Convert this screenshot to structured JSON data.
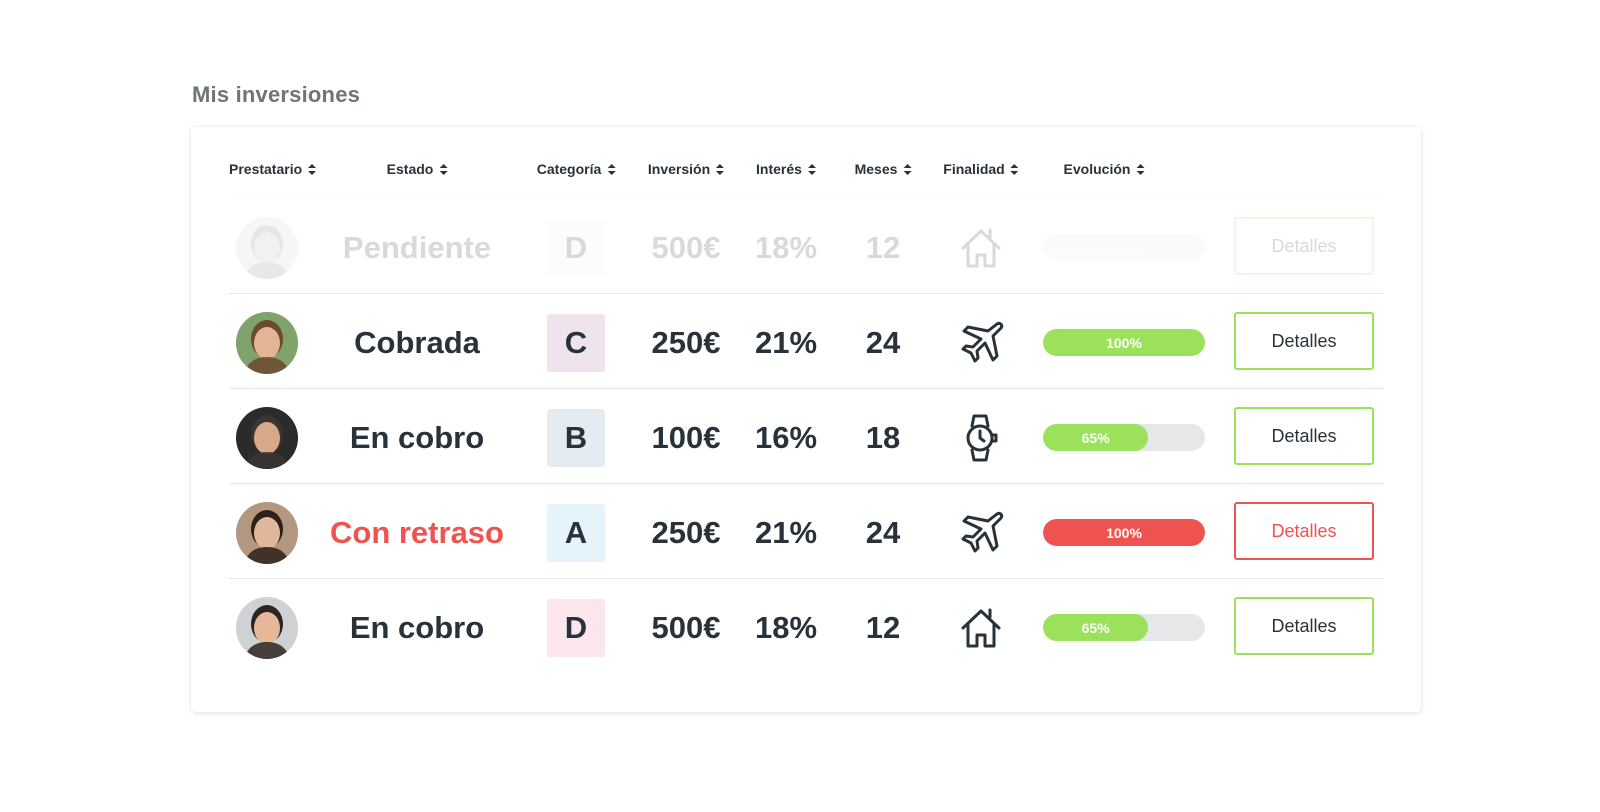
{
  "page": {
    "title": "Mis inversiones"
  },
  "table": {
    "headers": [
      "Prestatario",
      "Estado",
      "Categoría",
      "Inversión",
      "Interés",
      "Meses",
      "Finalidad",
      "Evolución"
    ],
    "rows": [
      {
        "status": "Pendiente",
        "status_kind": "pending",
        "category": "D",
        "category_color": "#f1f3f4",
        "investment": "500€",
        "interest": "18%",
        "months": "12",
        "purpose_icon": "house-icon",
        "progress": 0,
        "progress_label": "",
        "progress_color": "#e5e7e9",
        "button": "Detalles",
        "avatar_skin": "#b8b8b8",
        "avatar_hair": "#7a7a7a",
        "avatar_bg": "#d0d0d0"
      },
      {
        "status": "Cobrada",
        "status_kind": "paid",
        "category": "C",
        "category_color": "#efe3ee",
        "investment": "250€",
        "interest": "21%",
        "months": "24",
        "purpose_icon": "airplane-icon",
        "progress": 100,
        "progress_label": "100%",
        "progress_color": "#9be25a",
        "button": "Detalles",
        "avatar_skin": "#e2b594",
        "avatar_hair": "#6b4a2e",
        "avatar_bg": "#7fa36a"
      },
      {
        "status": "En cobro",
        "status_kind": "collecting",
        "category": "B",
        "category_color": "#e4ecf2",
        "investment": "100€",
        "interest": "16%",
        "months": "18",
        "purpose_icon": "watch-icon",
        "progress": 65,
        "progress_label": "65%",
        "progress_color": "#9be25a",
        "button": "Detalles",
        "avatar_skin": "#d9a889",
        "avatar_hair": "#3a3530",
        "avatar_bg": "#2b2b2b"
      },
      {
        "status": "Con retraso",
        "status_kind": "late",
        "category": "A",
        "category_color": "#e5f3fb",
        "investment": "250€",
        "interest": "21%",
        "months": "24",
        "purpose_icon": "airplane-icon",
        "progress": 100,
        "progress_label": "100%",
        "progress_color": "#ef5350",
        "button": "Detalles",
        "avatar_skin": "#e0b79b",
        "avatar_hair": "#2d2019",
        "avatar_bg": "#b3987f"
      },
      {
        "status": "En cobro",
        "status_kind": "collecting",
        "category": "D",
        "category_color": "#fbe6ec",
        "investment": "500€",
        "interest": "18%",
        "months": "12",
        "purpose_icon": "house-icon",
        "progress": 65,
        "progress_label": "65%",
        "progress_color": "#9be25a",
        "button": "Detalles",
        "avatar_skin": "#e6b89a",
        "avatar_hair": "#2e2520",
        "avatar_bg": "#cfd2d4"
      }
    ]
  }
}
